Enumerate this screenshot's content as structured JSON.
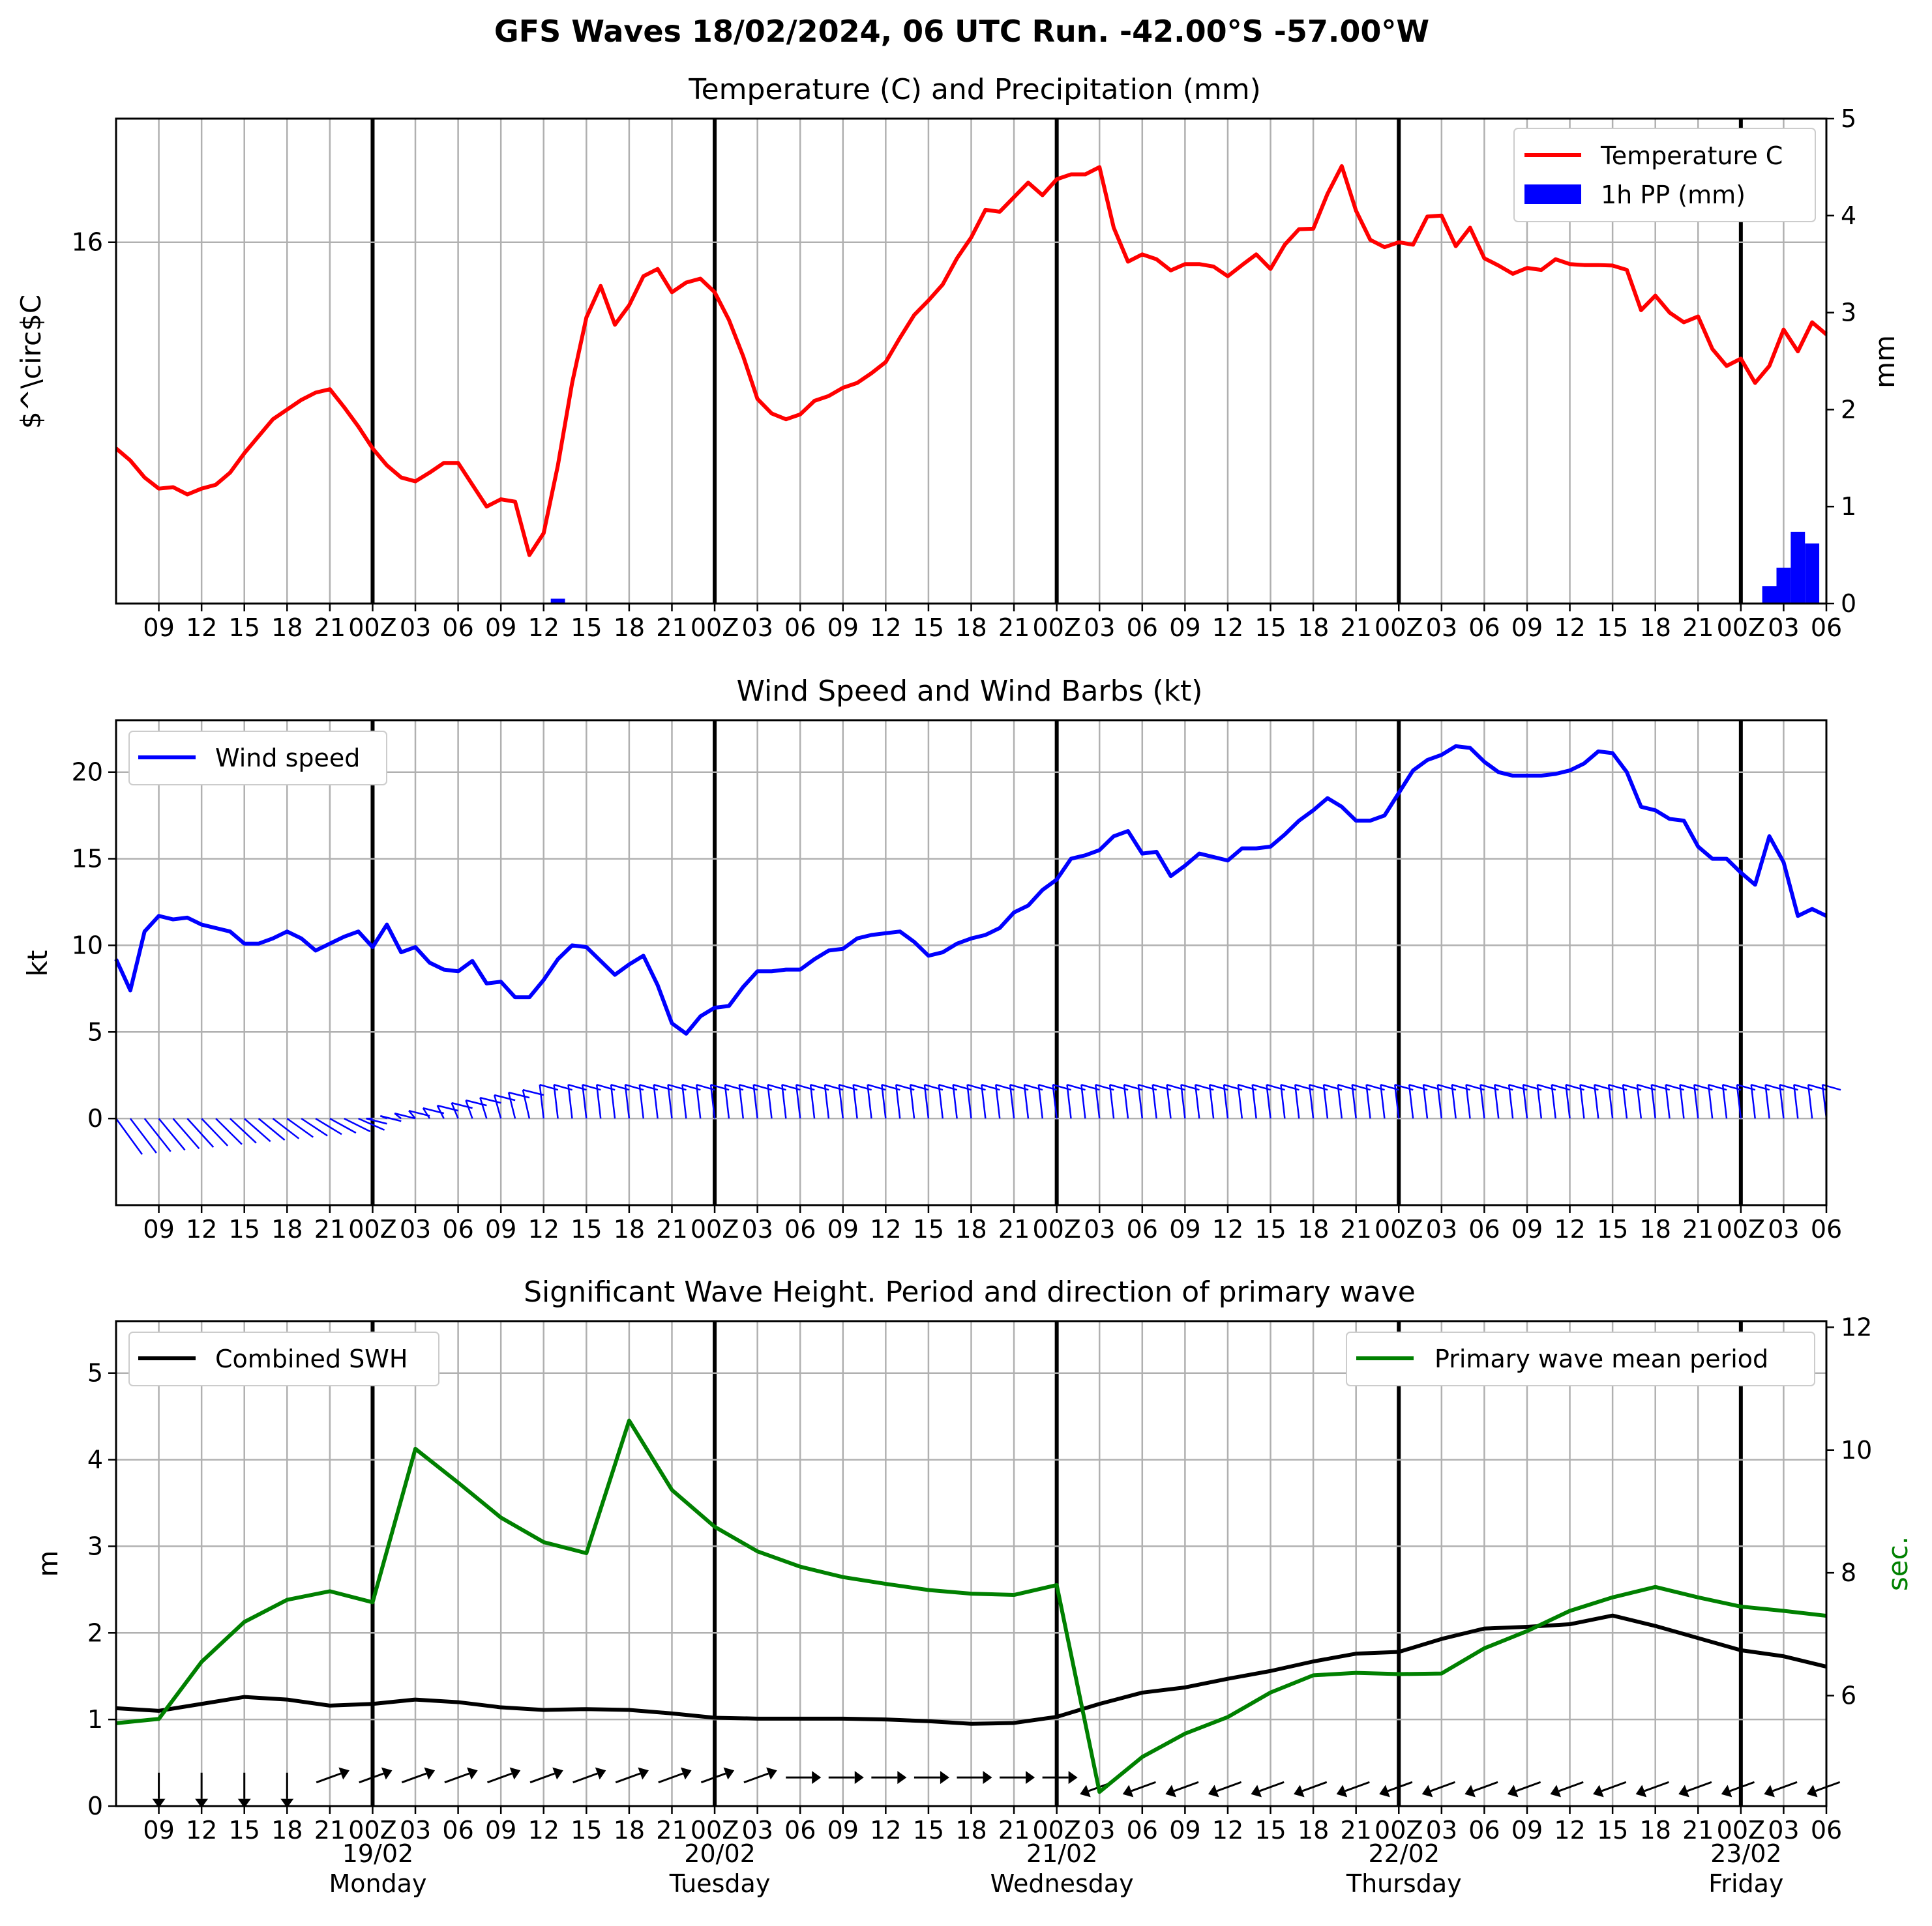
{
  "title": "GFS Waves 18/02/2024, 06 UTC Run. -42.00°S -57.00°W",
  "x_axis": {
    "hour_labels": [
      "09",
      "12",
      "15",
      "18",
      "21",
      "00Z",
      "03",
      "06",
      "09",
      "12",
      "15",
      "18",
      "21",
      "00Z",
      "03",
      "06",
      "09",
      "12",
      "15",
      "18",
      "21",
      "00Z",
      "03",
      "06",
      "09",
      "12",
      "15",
      "18",
      "21",
      "00Z",
      "03",
      "06",
      "09",
      "12",
      "15",
      "18",
      "21",
      "00Z",
      "03",
      "06"
    ],
    "day_labels": [
      {
        "date": "19/02",
        "weekday": "Monday"
      },
      {
        "date": "20/02",
        "weekday": "Tuesday"
      },
      {
        "date": "21/02",
        "weekday": "Wednesday"
      },
      {
        "date": "22/02",
        "weekday": "Thursday"
      },
      {
        "date": "23/02",
        "weekday": "Friday"
      }
    ]
  },
  "chart_data": [
    {
      "type": "line",
      "title": "Temperature (C) and Precipitation (mm)",
      "ylabel": "$^\\circ$C",
      "y2label": "mm",
      "x_unit": "hours after 18/02/2024 06 UTC",
      "yticks": [
        "16"
      ],
      "y2ticks": [
        "0",
        "1",
        "2",
        "3",
        "4",
        "5"
      ],
      "ylim2": [
        0,
        5
      ],
      "legend": [
        "Temperature C",
        "1h PP (mm)"
      ],
      "legend_position": "top-right",
      "colors": {
        "temperature": "#ff0000",
        "precip": "#0000ff"
      },
      "series": [
        {
          "name": "Temperature C",
          "x": [
            0,
            1,
            2,
            3,
            4,
            5,
            6,
            7,
            8,
            9,
            10,
            11,
            12,
            13,
            14,
            15,
            16,
            17,
            18,
            19,
            20,
            21,
            22,
            23,
            24,
            25,
            26,
            27,
            28,
            29,
            30,
            31,
            32,
            33,
            34,
            35,
            36,
            37,
            38,
            39,
            40,
            41,
            42,
            43,
            44,
            45,
            46,
            47,
            48,
            49,
            50,
            51,
            52,
            53,
            54,
            55,
            56,
            57,
            58,
            59,
            60,
            61,
            62,
            63,
            64,
            65,
            66,
            67,
            68,
            69,
            70,
            71,
            72,
            73,
            74,
            75,
            76,
            77,
            78,
            79,
            80,
            81,
            82,
            83,
            84,
            85,
            86,
            87,
            88,
            89,
            90,
            91,
            92,
            93,
            94,
            95,
            96,
            97,
            98,
            99,
            100,
            101,
            102,
            103,
            104,
            105,
            106,
            107,
            108,
            109,
            110,
            111,
            112,
            113,
            114,
            115,
            116,
            117,
            118,
            119,
            120
          ],
          "y_rel": [
            0.32,
            0.295,
            0.26,
            0.237,
            0.24,
            0.225,
            0.237,
            0.245,
            0.27,
            0.31,
            0.345,
            0.38,
            0.4,
            0.42,
            0.435,
            0.442,
            0.405,
            0.365,
            0.32,
            0.285,
            0.26,
            0.252,
            0.27,
            0.29,
            0.29,
            0.245,
            0.2,
            0.215,
            0.21,
            0.1,
            0.145,
            0.285,
            0.455,
            0.59,
            0.655,
            0.575,
            0.615,
            0.675,
            0.69,
            0.642,
            0.662,
            0.67,
            0.642,
            0.585,
            0.51,
            0.422,
            0.392,
            0.38,
            0.39,
            0.418,
            0.428,
            0.445,
            0.455,
            0.475,
            0.498,
            0.548,
            0.595,
            0.625,
            0.658,
            0.712,
            0.755,
            0.812,
            0.808,
            0.838,
            0.868,
            0.842,
            0.875,
            0.885,
            0.885,
            0.9,
            0.775,
            0.705,
            0.72,
            0.71,
            0.687,
            0.7,
            0.7,
            0.695,
            0.675,
            0.698,
            0.72,
            0.69,
            0.74,
            0.772,
            0.773,
            0.845,
            0.902,
            0.81,
            0.75,
            0.735,
            0.745,
            0.74,
            0.798,
            0.8,
            0.737,
            0.775,
            0.712,
            0.697,
            0.68,
            0.692,
            0.688,
            0.71,
            0.7,
            0.698,
            0.698,
            0.697,
            0.688,
            0.605,
            0.635,
            0.6,
            0.58,
            0.592,
            0.525,
            0.49,
            0.505,
            0.455,
            0.49,
            0.565,
            0.52,
            0.58,
            0.555
          ],
          "y_note": "relative plot height 0-1 (tick 16 at 0.745)"
        },
        {
          "name": "1h PP (mm)",
          "x": [
            31,
            116,
            117,
            118,
            119
          ],
          "values": [
            0.05,
            0.18,
            0.37,
            0.74,
            0.62
          ]
        }
      ]
    },
    {
      "type": "line",
      "title": "Wind Speed and Wind Barbs (kt)",
      "ylabel": "kt",
      "ylim": [
        -5,
        23
      ],
      "yticks": [
        "0",
        "5",
        "10",
        "15",
        "20"
      ],
      "legend": [
        "Wind speed"
      ],
      "legend_position": "top-left",
      "colors": {
        "wind": "#0000ff"
      },
      "series": [
        {
          "name": "Wind speed",
          "x": [
            0,
            1,
            2,
            3,
            4,
            5,
            6,
            7,
            8,
            9,
            10,
            11,
            12,
            13,
            14,
            15,
            16,
            17,
            18,
            19,
            20,
            21,
            22,
            23,
            24,
            25,
            26,
            27,
            28,
            29,
            30,
            31,
            32,
            33,
            34,
            35,
            36,
            37,
            38,
            39,
            40,
            41,
            42,
            43,
            44,
            45,
            46,
            47,
            48,
            49,
            50,
            51,
            52,
            53,
            54,
            55,
            56,
            57,
            58,
            59,
            60,
            61,
            62,
            63,
            64,
            65,
            66,
            67,
            68,
            69,
            70,
            71,
            72,
            73,
            74,
            75,
            76,
            77,
            78,
            79,
            80,
            81,
            82,
            83,
            84,
            85,
            86,
            87,
            88,
            89,
            90,
            91,
            92,
            93,
            94,
            95,
            96,
            97,
            98,
            99,
            100,
            101,
            102,
            103,
            104,
            105,
            106,
            107,
            108,
            109,
            110,
            111,
            112,
            113,
            114,
            115,
            116,
            117,
            118,
            119,
            120
          ],
          "values": [
            9.2,
            7.4,
            10.8,
            11.7,
            11.5,
            11.6,
            11.2,
            11.0,
            10.8,
            10.1,
            10.1,
            10.4,
            10.8,
            10.4,
            9.7,
            10.1,
            10.5,
            10.8,
            9.9,
            11.2,
            9.6,
            9.9,
            9.0,
            8.6,
            8.5,
            9.1,
            7.8,
            7.9,
            7.0,
            7.0,
            8.0,
            9.2,
            10.0,
            9.9,
            9.1,
            8.3,
            8.9,
            9.4,
            7.7,
            5.5,
            4.9,
            5.9,
            6.4,
            6.5,
            7.6,
            8.5,
            8.5,
            8.6,
            8.6,
            9.2,
            9.7,
            9.8,
            10.4,
            10.6,
            10.7,
            10.8,
            10.2,
            9.4,
            9.6,
            10.1,
            10.4,
            10.6,
            11.0,
            11.9,
            12.3,
            13.2,
            13.8,
            15.0,
            15.2,
            15.5,
            16.3,
            16.6,
            15.3,
            15.4,
            14.0,
            14.6,
            15.3,
            15.1,
            14.9,
            15.6,
            15.6,
            15.7,
            16.4,
            17.2,
            17.8,
            18.5,
            18.0,
            17.2,
            17.2,
            17.5,
            18.8,
            20.1,
            20.7,
            21.0,
            21.5,
            21.4,
            20.6,
            20.0,
            19.8,
            19.8,
            19.8,
            19.9,
            20.1,
            20.5,
            21.2,
            21.1,
            20.0,
            18.0,
            17.8,
            17.3,
            17.2,
            15.7,
            15.0,
            15.0,
            14.2,
            13.5,
            16.3,
            14.8,
            11.7,
            12.1,
            11.7
          ]
        }
      ]
    },
    {
      "type": "line",
      "title": "Significant Wave Height. Period and direction of primary wave",
      "ylabel": "m",
      "y2label": "sec.",
      "ylim": [
        0,
        5.6
      ],
      "yticks": [
        "0",
        "1",
        "2",
        "3",
        "4",
        "5"
      ],
      "ylim2": [
        4.2,
        12.1
      ],
      "y2ticks": [
        "6",
        "8",
        "10",
        "12"
      ],
      "legend": [
        "Combined SWH",
        "Primary wave mean period"
      ],
      "legend_position": "top-left / top-right",
      "colors": {
        "swh": "#000000",
        "period": "#008000"
      },
      "series": [
        {
          "name": "Combined SWH",
          "x": [
            0,
            3,
            6,
            9,
            12,
            15,
            18,
            21,
            24,
            27,
            30,
            33,
            36,
            39,
            42,
            45,
            48,
            51,
            54,
            57,
            60,
            63,
            66,
            69,
            72,
            75,
            78,
            81,
            84,
            87,
            90,
            93,
            96,
            99,
            102,
            105,
            108,
            111,
            114,
            117,
            120
          ],
          "values": [
            1.13,
            1.1,
            1.18,
            1.26,
            1.23,
            1.16,
            1.18,
            1.23,
            1.2,
            1.14,
            1.11,
            1.12,
            1.11,
            1.07,
            1.02,
            1.01,
            1.01,
            1.01,
            1.0,
            0.98,
            0.95,
            0.96,
            1.03,
            1.18,
            1.31,
            1.37,
            1.47,
            1.56,
            1.67,
            1.76,
            1.78,
            1.93,
            2.05,
            2.07,
            2.1,
            2.2,
            2.08,
            1.94,
            1.8,
            1.73,
            1.61
          ]
        },
        {
          "name": "Primary wave mean period",
          "x": [
            0,
            3,
            6,
            9,
            12,
            15,
            18,
            21,
            24,
            27,
            30,
            33,
            36,
            39,
            42,
            45,
            48,
            51,
            54,
            57,
            60,
            63,
            66,
            69,
            72,
            75,
            78,
            81,
            84,
            87,
            90,
            93,
            96,
            99,
            102,
            105,
            108,
            111,
            114,
            117,
            120
          ],
          "values": [
            5.55,
            5.62,
            6.55,
            7.2,
            7.56,
            7.7,
            7.52,
            10.02,
            9.47,
            8.9,
            8.5,
            8.32,
            10.48,
            9.35,
            8.75,
            8.35,
            8.1,
            7.93,
            7.82,
            7.72,
            7.66,
            7.64,
            7.8,
            4.43,
            5.0,
            5.38,
            5.65,
            6.05,
            6.33,
            6.37,
            6.35,
            6.36,
            6.77,
            7.05,
            7.38,
            7.6,
            7.77,
            7.6,
            7.45,
            7.38,
            7.3
          ]
        }
      ],
      "direction_arrows_note": "primary wave direction arrows along bottom"
    }
  ]
}
